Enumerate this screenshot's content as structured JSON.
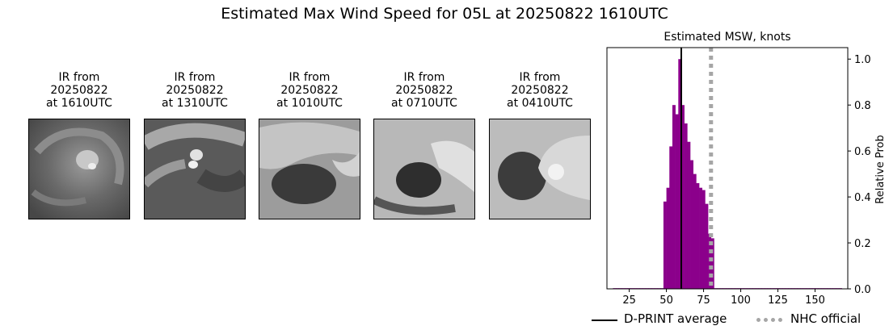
{
  "figure": {
    "title": "Estimated Max Wind Speed for 05L at 20250822 1610UTC"
  },
  "ir_panels": [
    {
      "line1": "IR from",
      "line2": "20250822",
      "line3": "at 1610UTC"
    },
    {
      "line1": "IR from",
      "line2": "20250822",
      "line3": "at 1310UTC"
    },
    {
      "line1": "IR from",
      "line2": "20250822",
      "line3": "at 1010UTC"
    },
    {
      "line1": "IR from",
      "line2": "20250822",
      "line3": "at 0710UTC"
    },
    {
      "line1": "IR from",
      "line2": "20250822",
      "line3": "at 0410UTC"
    }
  ],
  "chart_data": {
    "type": "bar",
    "title": "Estimated MSW, knots",
    "xlabel": "",
    "ylabel": "Relative Prob",
    "xlim": [
      10,
      172
    ],
    "ylim": [
      0,
      1.05
    ],
    "xticks": [
      25,
      50,
      75,
      100,
      125,
      150
    ],
    "yticks": [
      0.0,
      0.2,
      0.4,
      0.6,
      0.8,
      1.0
    ],
    "bin_width": 2,
    "bins": [
      {
        "x": 15,
        "value": 0.003
      },
      {
        "x": 17,
        "value": 0.003
      },
      {
        "x": 19,
        "value": 0.003
      },
      {
        "x": 21,
        "value": 0.003
      },
      {
        "x": 23,
        "value": 0.003
      },
      {
        "x": 25,
        "value": 0.003
      },
      {
        "x": 27,
        "value": 0.003
      },
      {
        "x": 29,
        "value": 0.003
      },
      {
        "x": 31,
        "value": 0.003
      },
      {
        "x": 33,
        "value": 0.003
      },
      {
        "x": 35,
        "value": 0.003
      },
      {
        "x": 37,
        "value": 0.003
      },
      {
        "x": 39,
        "value": 0.003
      },
      {
        "x": 41,
        "value": 0.003
      },
      {
        "x": 43,
        "value": 0.003
      },
      {
        "x": 45,
        "value": 0.003
      },
      {
        "x": 47,
        "value": 0.003
      },
      {
        "x": 49,
        "value": 0.38
      },
      {
        "x": 51,
        "value": 0.44
      },
      {
        "x": 53,
        "value": 0.62
      },
      {
        "x": 55,
        "value": 0.8
      },
      {
        "x": 57,
        "value": 0.76
      },
      {
        "x": 59,
        "value": 1.0
      },
      {
        "x": 61,
        "value": 0.8
      },
      {
        "x": 63,
        "value": 0.72
      },
      {
        "x": 65,
        "value": 0.64
      },
      {
        "x": 67,
        "value": 0.56
      },
      {
        "x": 69,
        "value": 0.5
      },
      {
        "x": 71,
        "value": 0.46
      },
      {
        "x": 73,
        "value": 0.44
      },
      {
        "x": 75,
        "value": 0.43
      },
      {
        "x": 77,
        "value": 0.37
      },
      {
        "x": 79,
        "value": 0.24
      },
      {
        "x": 81,
        "value": 0.22
      },
      {
        "x": 83,
        "value": 0.003
      },
      {
        "x": 85,
        "value": 0.003
      },
      {
        "x": 87,
        "value": 0.003
      },
      {
        "x": 89,
        "value": 0.003
      },
      {
        "x": 91,
        "value": 0.003
      },
      {
        "x": 93,
        "value": 0.003
      },
      {
        "x": 95,
        "value": 0.003
      },
      {
        "x": 97,
        "value": 0.003
      },
      {
        "x": 99,
        "value": 0.003
      },
      {
        "x": 101,
        "value": 0.003
      },
      {
        "x": 103,
        "value": 0.003
      },
      {
        "x": 105,
        "value": 0.003
      },
      {
        "x": 107,
        "value": 0.003
      },
      {
        "x": 109,
        "value": 0.003
      },
      {
        "x": 111,
        "value": 0.003
      },
      {
        "x": 113,
        "value": 0.003
      },
      {
        "x": 115,
        "value": 0.003
      },
      {
        "x": 117,
        "value": 0.003
      },
      {
        "x": 119,
        "value": 0.003
      },
      {
        "x": 121,
        "value": 0.003
      },
      {
        "x": 123,
        "value": 0.003
      },
      {
        "x": 125,
        "value": 0.003
      },
      {
        "x": 127,
        "value": 0.003
      },
      {
        "x": 129,
        "value": 0.003
      },
      {
        "x": 131,
        "value": 0.003
      },
      {
        "x": 133,
        "value": 0.003
      },
      {
        "x": 135,
        "value": 0.003
      },
      {
        "x": 137,
        "value": 0.003
      },
      {
        "x": 139,
        "value": 0.003
      },
      {
        "x": 141,
        "value": 0.003
      },
      {
        "x": 143,
        "value": 0.003
      },
      {
        "x": 145,
        "value": 0.003
      },
      {
        "x": 147,
        "value": 0.003
      },
      {
        "x": 149,
        "value": 0.003
      },
      {
        "x": 151,
        "value": 0.003
      },
      {
        "x": 153,
        "value": 0.003
      },
      {
        "x": 155,
        "value": 0.003
      },
      {
        "x": 157,
        "value": 0.003
      },
      {
        "x": 159,
        "value": 0.003
      },
      {
        "x": 161,
        "value": 0.003
      },
      {
        "x": 163,
        "value": 0.003
      },
      {
        "x": 165,
        "value": 0.003
      },
      {
        "x": 167,
        "value": 0.003
      }
    ],
    "bar_color": "#8b008b",
    "reference_lines": [
      {
        "name": "D-PRINT average",
        "x": 60,
        "color": "#000000",
        "style": "solid"
      },
      {
        "name": "NHC official",
        "x": 80,
        "color": "#a6a6a6",
        "style": "dotted"
      }
    ],
    "legend_position": "bottom-right"
  }
}
